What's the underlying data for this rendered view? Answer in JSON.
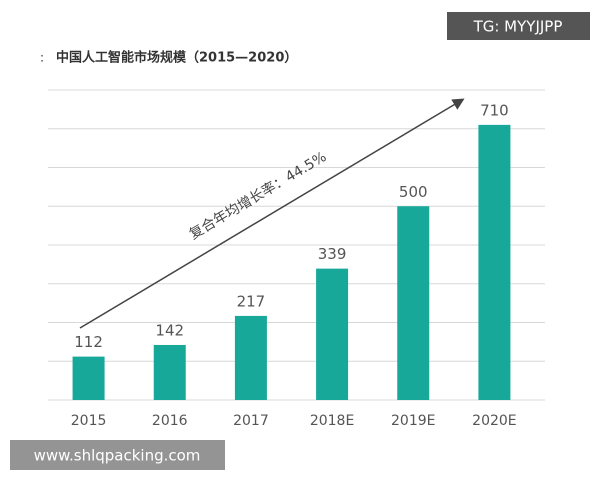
{
  "chart_data": {
    "type": "bar",
    "title": "中国人工智能市场规模（2015—2020）",
    "annotation": "复合年均增长率：44.5%",
    "watermarks": [
      "TG: MYYJJPP",
      "www.shlqpacking.com"
    ],
    "categories": [
      "2015",
      "2016",
      "2017",
      "2018E",
      "2019E",
      "2020E"
    ],
    "values": [
      112,
      142,
      217,
      339,
      500,
      710
    ],
    "color": "#17a899",
    "ylim": [
      0,
      800
    ],
    "yticks": [
      0,
      100,
      200,
      300,
      400,
      500,
      600,
      700,
      800
    ],
    "grid": true
  }
}
